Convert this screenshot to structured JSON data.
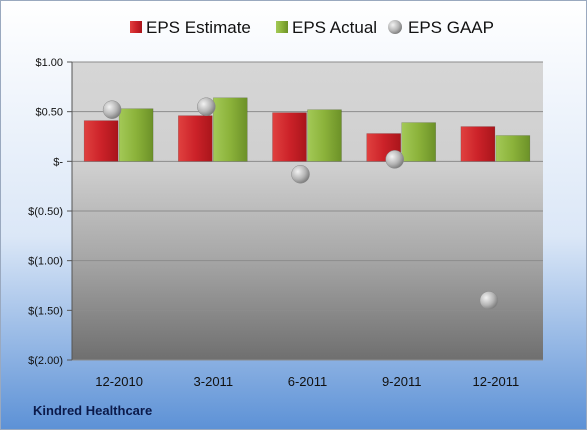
{
  "chart_data": {
    "type": "bar",
    "company": "Kindred Healthcare",
    "categories": [
      "12-2010",
      "3-2011",
      "6-2011",
      "9-2011",
      "12-2011"
    ],
    "series": [
      {
        "name": "EPS Estimate",
        "kind": "bar",
        "color": "#cc2229",
        "values": [
          0.41,
          0.46,
          0.49,
          0.28,
          0.35
        ]
      },
      {
        "name": "EPS Actual",
        "kind": "bar",
        "color": "#8bb23a",
        "values": [
          0.53,
          0.64,
          0.52,
          0.39,
          0.26
        ]
      },
      {
        "name": "EPS GAAP",
        "kind": "marker",
        "color": "#a9a9a9",
        "values": [
          0.52,
          0.55,
          -0.13,
          0.02,
          -1.4
        ]
      }
    ],
    "y_ticks": [
      {
        "value": 1.0,
        "label": "$1.00"
      },
      {
        "value": 0.5,
        "label": "$0.50"
      },
      {
        "value": 0.0,
        "label": "$-"
      },
      {
        "value": -0.5,
        "label": "$(0.50)"
      },
      {
        "value": -1.0,
        "label": "$(1.00)"
      },
      {
        "value": -1.5,
        "label": "$(1.50)"
      },
      {
        "value": -2.0,
        "label": "$(2.00)"
      }
    ],
    "ylim": [
      -2.0,
      1.0
    ],
    "grid": true,
    "legend_position": "top"
  }
}
